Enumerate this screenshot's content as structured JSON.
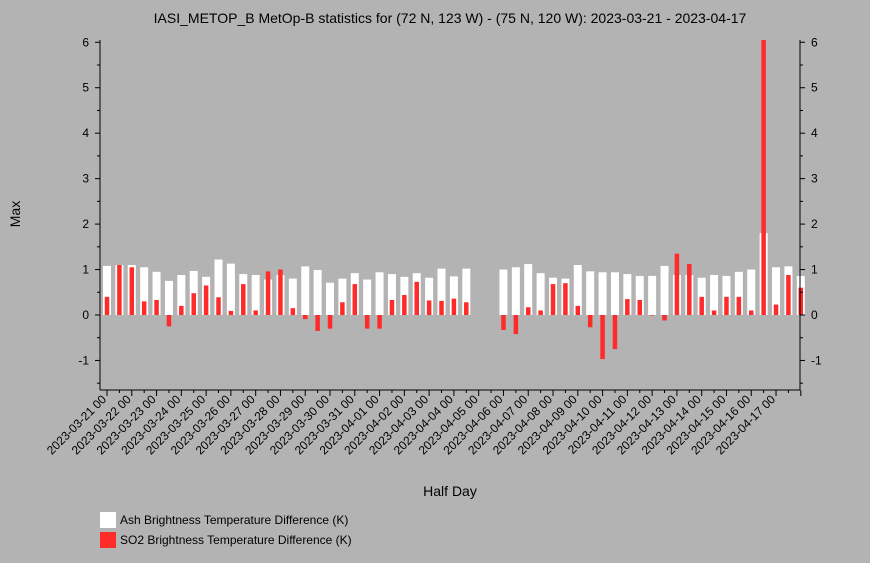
{
  "chart_data": {
    "type": "bar",
    "title": "IASI_METOP_B MetOp-B statistics for (72 N, 123 W) - (75 N, 120 W): 2023-03-21 - 2023-04-17",
    "xlabel": "Half Day",
    "ylabel": "Max",
    "ylim": [
      -1.65,
      6.05
    ],
    "yticks": [
      -1,
      0,
      1,
      2,
      3,
      4,
      5,
      6
    ],
    "tick_labels": [
      "2023-03-21 00",
      "2023-03-22 00",
      "2023-03-23 00",
      "2023-03-24 00",
      "2023-03-25 00",
      "2023-03-26 00",
      "2023-03-27 00",
      "2023-03-28 00",
      "2023-03-29 00",
      "2023-03-30 00",
      "2023-03-31 00",
      "2023-04-01 00",
      "2023-04-02 00",
      "2023-04-03 00",
      "2023-04-04 00",
      "2023-04-05 00",
      "2023-04-06 00",
      "2023-04-07 00",
      "2023-04-08 00",
      "2023-04-09 00",
      "2023-04-10 00",
      "2023-04-11 00",
      "2023-04-12 00",
      "2023-04-13 00",
      "2023-04-14 00",
      "2023-04-15 00",
      "2023-04-16 00",
      "2023-04-17 00"
    ],
    "series": [
      {
        "name": "Ash Brightness Temperature Difference (K)",
        "color": "#ffffff",
        "values": [
          1.08,
          1.1,
          1.1,
          1.05,
          0.95,
          0.75,
          0.88,
          0.97,
          0.84,
          1.22,
          1.13,
          0.9,
          0.88,
          0.78,
          0.88,
          0.8,
          1.07,
          0.99,
          0.71,
          0.8,
          0.92,
          0.78,
          0.94,
          0.9,
          0.84,
          0.92,
          0.82,
          1.02,
          0.85,
          1.02,
          null,
          null,
          1.0,
          1.05,
          1.12,
          0.92,
          0.82,
          0.8,
          1.1,
          0.96,
          0.94,
          0.94,
          0.9,
          0.86,
          0.86,
          1.08,
          0.88,
          0.88,
          0.82,
          0.88,
          0.86,
          0.95,
          1.0,
          1.8,
          1.05,
          1.07,
          0.86
        ]
      },
      {
        "name": "SO2 Brightness Temperature Difference (K)",
        "color": "#ff2a2a",
        "values": [
          0.4,
          1.1,
          1.05,
          0.3,
          0.33,
          -0.25,
          0.2,
          0.48,
          0.65,
          0.39,
          0.09,
          0.68,
          0.1,
          0.96,
          1.0,
          0.15,
          -0.09,
          -0.35,
          -0.3,
          0.28,
          0.68,
          -0.3,
          -0.3,
          0.33,
          0.44,
          0.73,
          0.32,
          0.31,
          0.36,
          0.28,
          null,
          null,
          -0.33,
          -0.42,
          0.17,
          0.1,
          0.68,
          0.7,
          0.2,
          -0.27,
          -0.97,
          -0.75,
          0.35,
          0.33,
          0.0,
          -0.12,
          1.35,
          1.12,
          0.4,
          0.1,
          0.4,
          0.4,
          0.1,
          6.05,
          0.23,
          0.88,
          0.6
        ]
      }
    ],
    "grid": false,
    "legend_position": "bottom-left"
  },
  "legend": [
    {
      "label": "Ash Brightness Temperature Difference (K)",
      "color": "#ffffff"
    },
    {
      "label": "SO2 Brightness Temperature Difference (K)",
      "color": "#ff2a2a"
    }
  ]
}
